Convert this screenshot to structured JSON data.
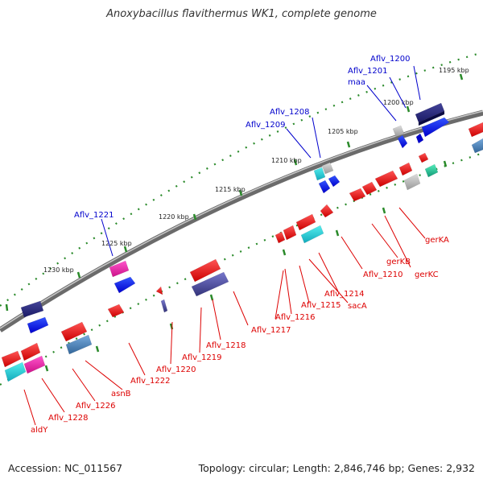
{
  "title": "Anoxybacillus flavithermus WK1, complete genome",
  "footer": {
    "accession": "Accession: NC_011567",
    "summary": "Topology: circular; Length: 2,846,746 bp; Genes: 2,932"
  },
  "colors": {
    "forward_label": "#0000cc",
    "reverse_label": "#dd0000",
    "backbone": "#7a7a7a",
    "tick": "#228822"
  },
  "scale_labels": [
    "1195 kbp",
    "1200 kbp",
    "1205 kbp",
    "1210 kbp",
    "1215 kbp",
    "1220 kbp",
    "1225 kbp",
    "1230 kbp"
  ],
  "forward_genes": [
    "Aflv_1200",
    "Aflv_1201",
    "maa",
    "Aflv_1208",
    "Aflv_1209",
    "Aflv_1221"
  ],
  "reverse_genes": [
    "gerKA",
    "gerKB",
    "gerKC",
    "Aflv_1210",
    "Aflv_1214",
    "sacA",
    "Aflv_1215",
    "Aflv_1216",
    "Aflv_1217",
    "Aflv_1218",
    "Aflv_1219",
    "Aflv_1220",
    "Aflv_1222",
    "asnB",
    "Aflv_1226",
    "Aflv_1228",
    "aldY"
  ]
}
